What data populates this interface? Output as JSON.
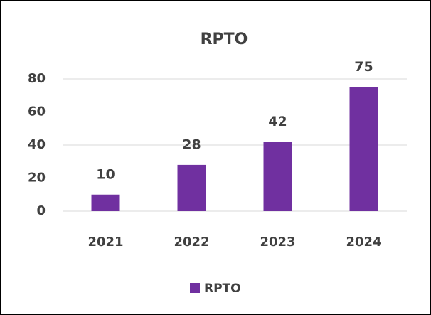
{
  "chart_data": {
    "type": "bar",
    "title": "RPTO",
    "categories": [
      "2021",
      "2022",
      "2023",
      "2024"
    ],
    "series": [
      {
        "name": "RPTO",
        "color": "#7030a0",
        "values": [
          10,
          28,
          42,
          75
        ]
      }
    ],
    "ylim": [
      0,
      80
    ],
    "yticks": [
      0,
      20,
      40,
      60,
      80
    ],
    "grid": true,
    "legend": "bottom"
  }
}
